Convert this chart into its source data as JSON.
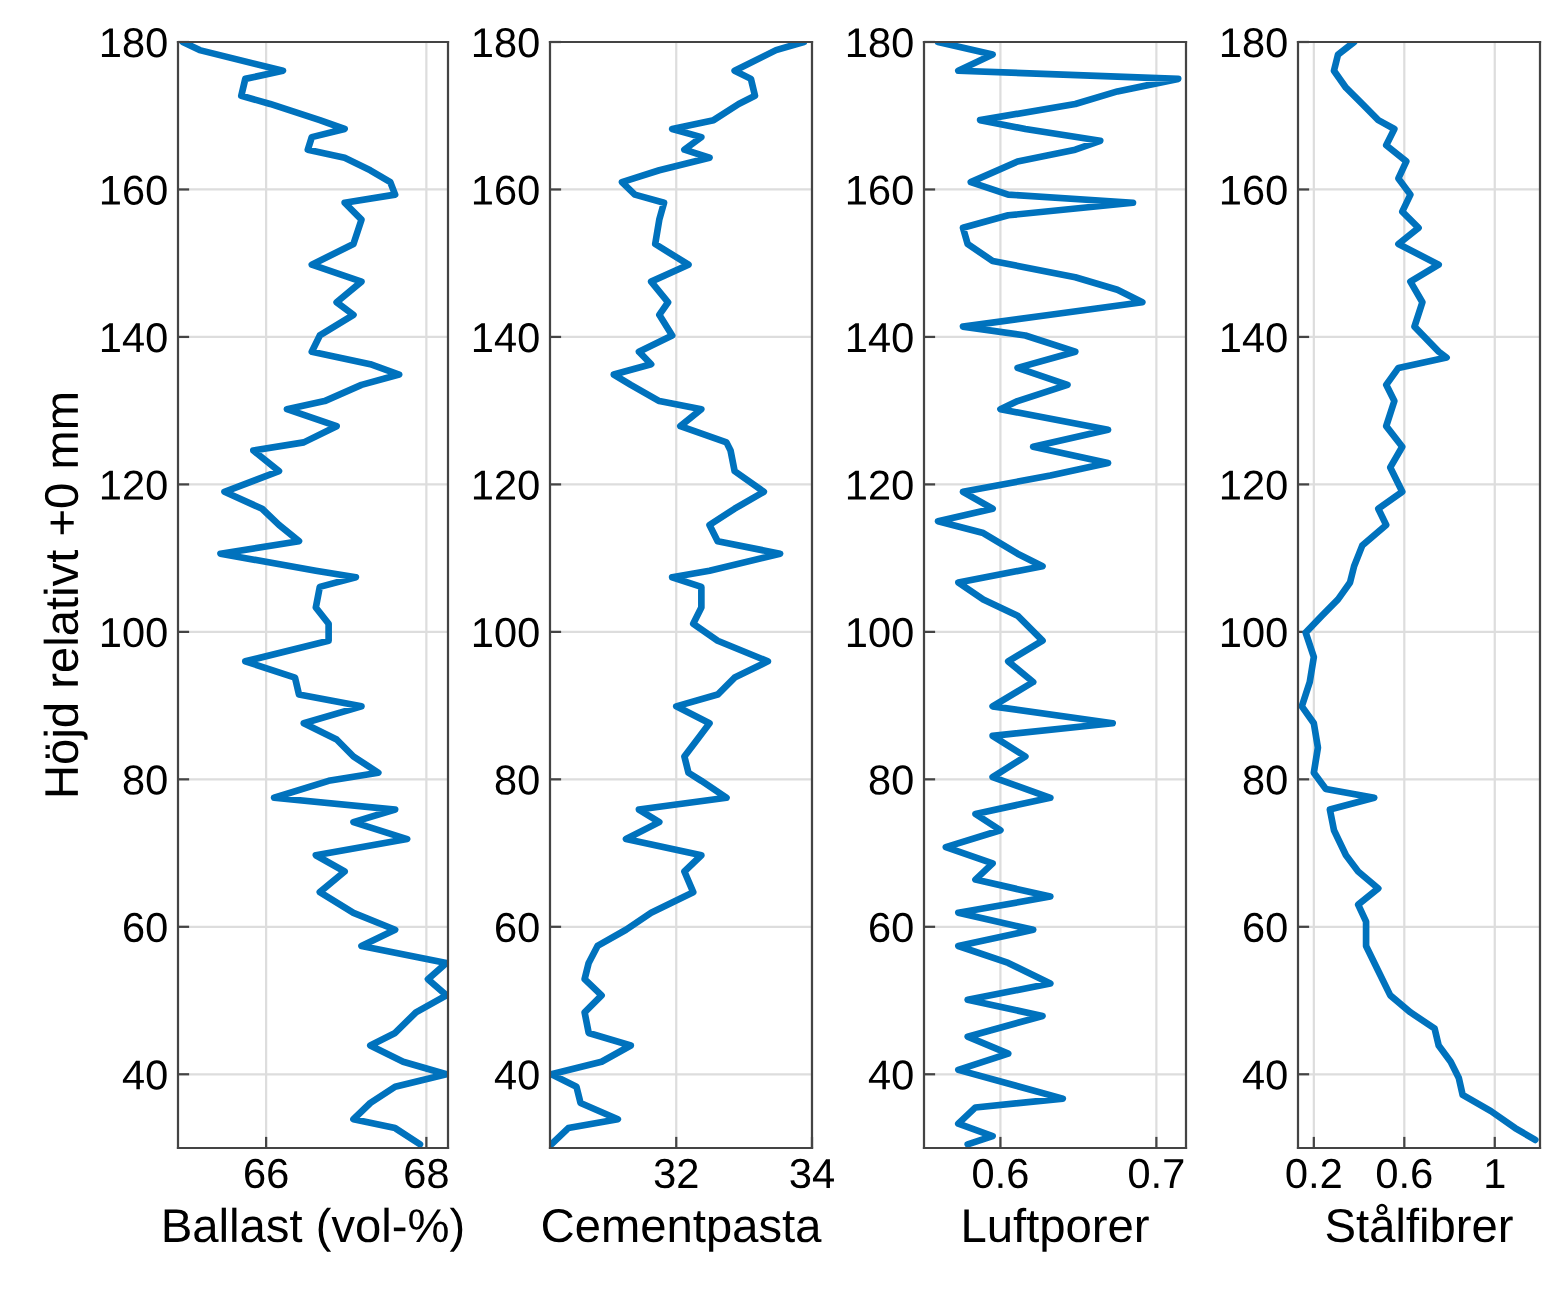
{
  "chart_data": [
    {
      "type": "line",
      "xlabel": "Ballast (vol-%)",
      "ylabel": "Höjd relativt +0 mm",
      "color": "#0072bd",
      "grid": true,
      "xlim": [
        64.9,
        68.27
      ],
      "xticks": [
        66,
        68
      ],
      "ylim": [
        30,
        180
      ],
      "yticks": [
        40,
        60,
        80,
        100,
        120,
        140,
        160,
        180
      ],
      "x": [
        64.96,
        65.17,
        66.21,
        65.74,
        65.69,
        66.05,
        66.67,
        66.98,
        66.57,
        66.52,
        66.98,
        67.3,
        67.55,
        67.61,
        66.98,
        67.19,
        67.09,
        66.57,
        67.19,
        66.88,
        67.09,
        66.67,
        66.57,
        67.3,
        67.66,
        67.19,
        66.73,
        66.26,
        66.88,
        66.47,
        65.84,
        66.16,
        65.48,
        65.95,
        66.16,
        66.41,
        65.43,
        66.62,
        67.12,
        66.67,
        66.62,
        66.78,
        66.78,
        65.74,
        66.36,
        66.41,
        67.19,
        66.47,
        66.88,
        67.09,
        67.4,
        66.78,
        66.1,
        67.61,
        67.09,
        67.76,
        66.62,
        66.98,
        66.67,
        67.09,
        67.61,
        67.19,
        68.25,
        68.02,
        68.25,
        67.87,
        67.61,
        67.3,
        67.71,
        68.25,
        67.61,
        67.3,
        67.09,
        67.61,
        67.92
      ],
      "values": [
        180,
        178.9,
        176.1,
        175.0,
        172.7,
        171.6,
        169.4,
        168.2,
        167.1,
        165.4,
        164.3,
        162.6,
        161.0,
        159.3,
        158.2,
        155.9,
        152.6,
        149.8,
        147.5,
        144.7,
        143.0,
        140.2,
        138.0,
        136.3,
        134.9,
        133.5,
        131.3,
        130.2,
        127.9,
        125.7,
        124.6,
        121.8,
        119.0,
        116.7,
        114.5,
        112.3,
        110.6,
        108.3,
        107.4,
        106.1,
        103.3,
        101.1,
        98.8,
        96.0,
        93.8,
        91.5,
        89.9,
        87.6,
        85.4,
        83.1,
        80.9,
        79.8,
        77.5,
        75.9,
        74.2,
        71.9,
        69.7,
        67.5,
        64.7,
        61.9,
        59.6,
        57.4,
        55.1,
        52.9,
        50.7,
        48.4,
        45.6,
        43.9,
        41.7,
        40.0,
        38.3,
        36.1,
        33.9,
        32.7,
        30.5
      ]
    },
    {
      "type": "line",
      "xlabel": "Cementpasta",
      "color": "#0072bd",
      "grid": true,
      "xlim": [
        30.14,
        34.0
      ],
      "xticks": [
        32,
        34
      ],
      "ylim": [
        30,
        180
      ],
      "yticks": [
        40,
        60,
        80,
        100,
        120,
        140,
        160,
        180
      ],
      "x": [
        33.88,
        33.47,
        32.86,
        33.1,
        33.16,
        32.92,
        32.55,
        31.94,
        32.37,
        32.12,
        32.49,
        31.75,
        31.2,
        31.39,
        31.82,
        31.75,
        31.69,
        32.18,
        31.63,
        31.88,
        31.75,
        31.94,
        31.45,
        31.63,
        31.08,
        31.33,
        31.75,
        32.37,
        32.06,
        32.74,
        32.8,
        32.86,
        33.29,
        32.86,
        32.49,
        32.61,
        33.53,
        32.49,
        31.94,
        32.37,
        32.37,
        32.25,
        32.61,
        33.35,
        32.86,
        32.61,
        32.0,
        32.49,
        32.31,
        32.12,
        32.18,
        32.37,
        32.74,
        31.45,
        31.75,
        31.26,
        32.37,
        32.12,
        32.25,
        31.63,
        31.26,
        30.84,
        30.71,
        30.65,
        30.9,
        30.65,
        30.71,
        31.33,
        30.9,
        30.16,
        30.53,
        30.59,
        31.14,
        30.41,
        30.16
      ],
      "values": [
        180,
        178.9,
        176.1,
        175.0,
        172.7,
        171.6,
        169.4,
        168.2,
        167.1,
        165.4,
        164.3,
        162.6,
        161.0,
        159.3,
        158.2,
        155.9,
        152.6,
        149.8,
        147.5,
        144.7,
        143.0,
        140.2,
        138.0,
        136.3,
        134.9,
        133.5,
        131.3,
        130.2,
        127.9,
        125.7,
        124.6,
        121.8,
        119.0,
        116.7,
        114.5,
        112.3,
        110.6,
        108.3,
        107.4,
        106.1,
        103.3,
        101.1,
        98.8,
        96.0,
        93.8,
        91.5,
        89.9,
        87.6,
        85.4,
        83.1,
        80.9,
        79.8,
        77.5,
        75.9,
        74.2,
        71.9,
        69.7,
        67.5,
        64.7,
        61.9,
        59.6,
        57.4,
        55.1,
        52.9,
        50.7,
        48.4,
        45.6,
        43.9,
        41.7,
        40.0,
        38.3,
        36.1,
        33.9,
        32.7,
        30.5
      ]
    },
    {
      "type": "line",
      "xlabel": "Luftporer",
      "color": "#0072bd",
      "grid": true,
      "xlim": [
        0.551,
        0.719
      ],
      "xticks": [
        0.6,
        0.7
      ],
      "ylim": [
        30,
        180
      ],
      "yticks": [
        40,
        60,
        80,
        100,
        120,
        140,
        160,
        180
      ],
      "x": [
        0.56,
        0.595,
        0.573,
        0.714,
        0.675,
        0.648,
        0.587,
        0.616,
        0.664,
        0.648,
        0.611,
        0.581,
        0.605,
        0.685,
        0.605,
        0.576,
        0.579,
        0.595,
        0.648,
        0.675,
        0.691,
        0.632,
        0.576,
        0.616,
        0.648,
        0.611,
        0.643,
        0.611,
        0.6,
        0.669,
        0.621,
        0.669,
        0.632,
        0.576,
        0.595,
        0.56,
        0.589,
        0.611,
        0.627,
        0.573,
        0.589,
        0.611,
        0.627,
        0.605,
        0.621,
        0.595,
        0.672,
        0.595,
        0.616,
        0.595,
        0.632,
        0.584,
        0.6,
        0.565,
        0.595,
        0.584,
        0.632,
        0.573,
        0.621,
        0.573,
        0.605,
        0.632,
        0.579,
        0.627,
        0.579,
        0.605,
        0.573,
        0.64,
        0.584,
        0.573,
        0.595,
        0.579
      ],
      "values": [
        180,
        178.3,
        176.1,
        175.0,
        173.3,
        171.6,
        169.4,
        168.2,
        166.6,
        165.4,
        163.8,
        161.0,
        159.3,
        158.2,
        156.5,
        154.8,
        152.6,
        150.3,
        148.1,
        146.4,
        144.7,
        143.0,
        141.4,
        140.2,
        138.0,
        135.8,
        133.5,
        131.3,
        130.2,
        127.4,
        125.1,
        122.9,
        121.2,
        119.0,
        116.7,
        115.0,
        113.4,
        110.6,
        108.9,
        106.7,
        104.4,
        102.2,
        98.8,
        96.0,
        93.2,
        89.9,
        87.6,
        85.9,
        83.1,
        80.3,
        77.5,
        75.3,
        73.1,
        70.8,
        68.6,
        66.4,
        64.1,
        61.9,
        59.6,
        57.4,
        55.1,
        52.3,
        50.1,
        47.9,
        45.1,
        42.8,
        40.6,
        36.7,
        35.5,
        33.3,
        31.6,
        30.5
      ]
    },
    {
      "type": "line",
      "xlabel": "Stålfibrer",
      "color": "#0072bd",
      "grid": true,
      "xlim": [
        0.13,
        1.2
      ],
      "xticks": [
        0.2,
        0.6,
        1
      ],
      "ylim": [
        30,
        180
      ],
      "yticks": [
        40,
        60,
        80,
        100,
        120,
        140,
        160,
        180
      ],
      "x": [
        0.378,
        0.307,
        0.289,
        0.342,
        0.414,
        0.485,
        0.556,
        0.52,
        0.609,
        0.574,
        0.627,
        0.591,
        0.663,
        0.574,
        0.752,
        0.627,
        0.68,
        0.645,
        0.752,
        0.787,
        0.574,
        0.52,
        0.556,
        0.52,
        0.591,
        0.538,
        0.591,
        0.485,
        0.52,
        0.414,
        0.378,
        0.36,
        0.307,
        0.236,
        0.164,
        0.2,
        0.182,
        0.147,
        0.2,
        0.218,
        0.2,
        0.253,
        0.467,
        0.271,
        0.289,
        0.342,
        0.396,
        0.485,
        0.396,
        0.431,
        0.431,
        0.485,
        0.538,
        0.627,
        0.734,
        0.752,
        0.805,
        0.841,
        0.858,
        0.983,
        1.09,
        1.179
      ],
      "values": [
        180,
        178.3,
        176.1,
        173.8,
        171.6,
        169.4,
        168.2,
        166.0,
        163.8,
        161.5,
        159.3,
        157.0,
        154.8,
        152.6,
        149.8,
        147.5,
        144.7,
        141.4,
        138.0,
        137.2,
        135.8,
        133.5,
        131.3,
        127.9,
        125.1,
        122.3,
        119.0,
        116.7,
        114.5,
        111.7,
        108.9,
        106.7,
        104.4,
        102.2,
        99.9,
        96.6,
        93.2,
        89.9,
        87.6,
        84.3,
        80.9,
        78.7,
        77.5,
        75.9,
        73.1,
        69.7,
        67.5,
        65.2,
        63.0,
        60.7,
        57.4,
        54.0,
        50.7,
        48.4,
        46.2,
        43.9,
        41.7,
        39.5,
        37.2,
        35.0,
        32.7,
        31.1
      ]
    }
  ]
}
